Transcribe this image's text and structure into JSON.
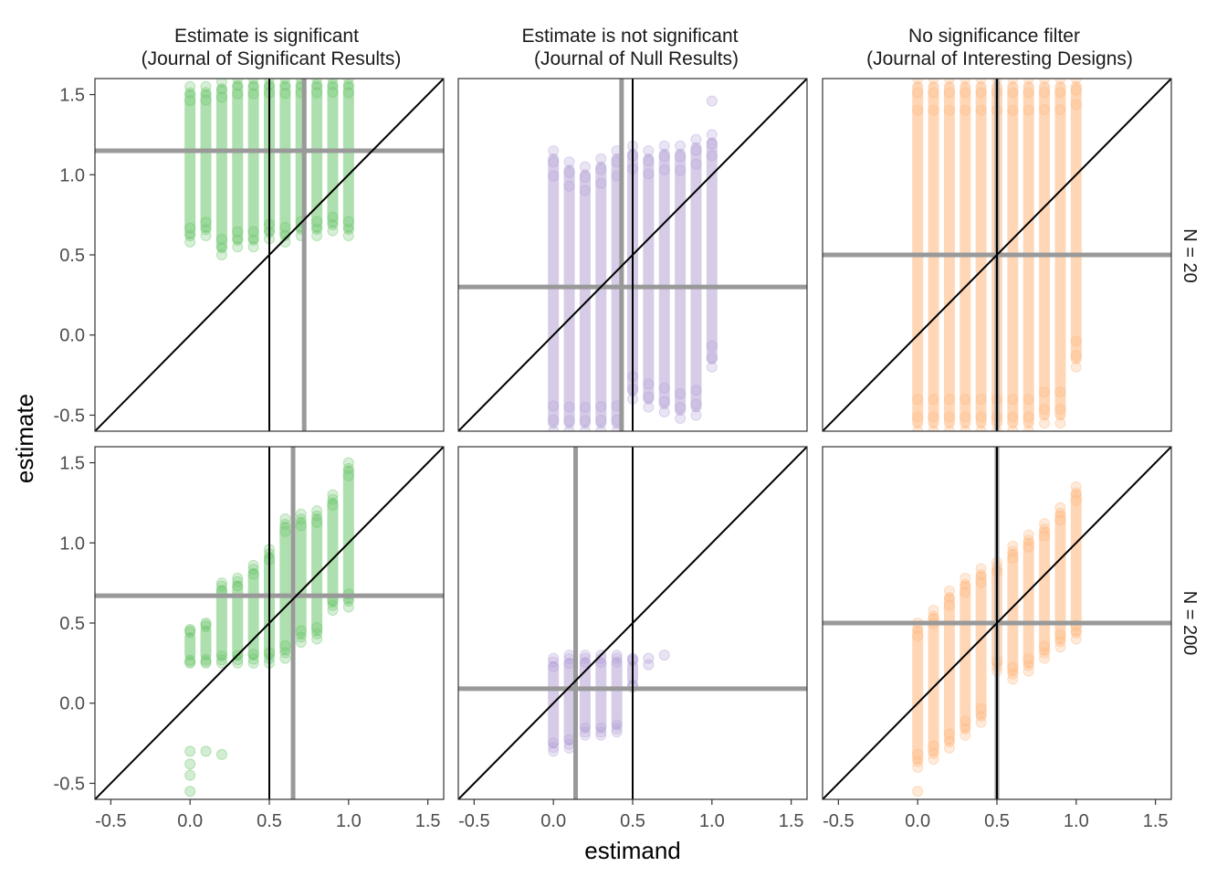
{
  "chart_data": {
    "type": "scatter",
    "xlabel": "estimand",
    "ylabel": "estimate",
    "xlim": [
      -0.6,
      1.6
    ],
    "ylim": [
      -0.6,
      1.6
    ],
    "x_ticks": [
      "-0.5",
      "0.0",
      "0.5",
      "1.0",
      "1.5"
    ],
    "y_ticks": [
      "-0.5",
      "0.0",
      "0.5",
      "1.0",
      "1.5"
    ],
    "columns": [
      {
        "title": "Estimate is significant",
        "subtitle": "(Journal of Significant Results)",
        "color": "#6cc56c"
      },
      {
        "title": "Estimate is not significant",
        "subtitle": "(Journal of Null Results)",
        "color": "#b5a3d6"
      },
      {
        "title": "No significance filter",
        "subtitle": "(Journal of Interesting Designs)",
        "color": "#ffb77c"
      }
    ],
    "rows": [
      {
        "label": "N = 20"
      },
      {
        "label": "N = 200"
      }
    ],
    "estimand_levels": [
      0,
      0.1,
      0.2,
      0.3,
      0.4,
      0.5,
      0.6,
      0.7,
      0.8,
      0.9,
      1.0
    ],
    "reference_line": "estimate = estimand",
    "panels": [
      {
        "row": 0,
        "col": 0,
        "mean_estimand": 0.72,
        "mean_estimate": 1.15,
        "true_estimand": 0.5,
        "ranges": [
          [
            0.58,
            1.55
          ],
          [
            0.62,
            1.55
          ],
          [
            0.5,
            1.58
          ],
          [
            0.55,
            1.6
          ],
          [
            0.55,
            1.6
          ],
          [
            0.6,
            1.6
          ],
          [
            0.58,
            1.6
          ],
          [
            0.62,
            1.6
          ],
          [
            0.62,
            1.6
          ],
          [
            0.65,
            1.6
          ],
          [
            0.62,
            1.6
          ]
        ],
        "outliers": []
      },
      {
        "row": 0,
        "col": 1,
        "mean_estimand": 0.43,
        "mean_estimate": 0.3,
        "true_estimand": 0.5,
        "ranges": [
          [
            -0.6,
            1.15
          ],
          [
            -0.6,
            1.08
          ],
          [
            -0.6,
            1.05
          ],
          [
            -0.6,
            1.1
          ],
          [
            -0.6,
            1.15
          ],
          [
            -0.4,
            1.18
          ],
          [
            -0.45,
            1.15
          ],
          [
            -0.48,
            1.18
          ],
          [
            -0.52,
            1.18
          ],
          [
            -0.5,
            1.22
          ],
          [
            -0.2,
            1.25
          ]
        ],
        "outliers": [
          [
            1.0,
            1.46
          ]
        ]
      },
      {
        "row": 0,
        "col": 2,
        "mean_estimand": 0.5,
        "mean_estimate": 0.5,
        "true_estimand": 0.5,
        "ranges": [
          [
            -0.6,
            1.6
          ],
          [
            -0.6,
            1.6
          ],
          [
            -0.6,
            1.6
          ],
          [
            -0.6,
            1.6
          ],
          [
            -0.6,
            1.6
          ],
          [
            -0.6,
            1.6
          ],
          [
            -0.6,
            1.6
          ],
          [
            -0.6,
            1.6
          ],
          [
            -0.55,
            1.6
          ],
          [
            -0.55,
            1.6
          ],
          [
            -0.2,
            1.6
          ]
        ],
        "outliers": []
      },
      {
        "row": 1,
        "col": 0,
        "mean_estimand": 0.65,
        "mean_estimate": 0.67,
        "true_estimand": 0.5,
        "ranges": [
          [
            0.25,
            0.46
          ],
          [
            0.25,
            0.5
          ],
          [
            0.25,
            0.75
          ],
          [
            0.25,
            0.78
          ],
          [
            0.25,
            0.86
          ],
          [
            0.25,
            0.96
          ],
          [
            0.28,
            1.15
          ],
          [
            0.38,
            1.18
          ],
          [
            0.4,
            1.2
          ],
          [
            0.58,
            1.3
          ],
          [
            0.6,
            1.5
          ]
        ],
        "outliers": [
          [
            0,
            -0.3
          ],
          [
            0,
            -0.38
          ],
          [
            0,
            -0.45
          ],
          [
            0,
            -0.55
          ],
          [
            0.1,
            -0.3
          ],
          [
            0.2,
            -0.32
          ]
        ]
      },
      {
        "row": 1,
        "col": 1,
        "mean_estimand": 0.14,
        "mean_estimate": 0.09,
        "true_estimand": 0.5,
        "ranges": [
          [
            -0.3,
            0.28
          ],
          [
            -0.28,
            0.3
          ],
          [
            -0.2,
            0.3
          ],
          [
            -0.2,
            0.3
          ],
          [
            -0.18,
            0.3
          ],
          [
            0.1,
            0.28
          ]
        ],
        "outliers": [
          [
            0.6,
            0.28
          ],
          [
            0.6,
            0.24
          ],
          [
            0.7,
            0.3
          ]
        ]
      },
      {
        "row": 1,
        "col": 2,
        "mean_estimand": 0.5,
        "mean_estimate": 0.5,
        "true_estimand": 0.5,
        "ranges": [
          [
            -0.4,
            0.5
          ],
          [
            -0.35,
            0.58
          ],
          [
            -0.28,
            0.7
          ],
          [
            -0.2,
            0.78
          ],
          [
            -0.12,
            0.84
          ],
          [
            0.2,
            0.88
          ],
          [
            0.15,
            0.98
          ],
          [
            0.2,
            1.05
          ],
          [
            0.28,
            1.12
          ],
          [
            0.35,
            1.22
          ],
          [
            0.4,
            1.35
          ]
        ],
        "outliers": [
          [
            0,
            -0.55
          ]
        ]
      }
    ]
  }
}
